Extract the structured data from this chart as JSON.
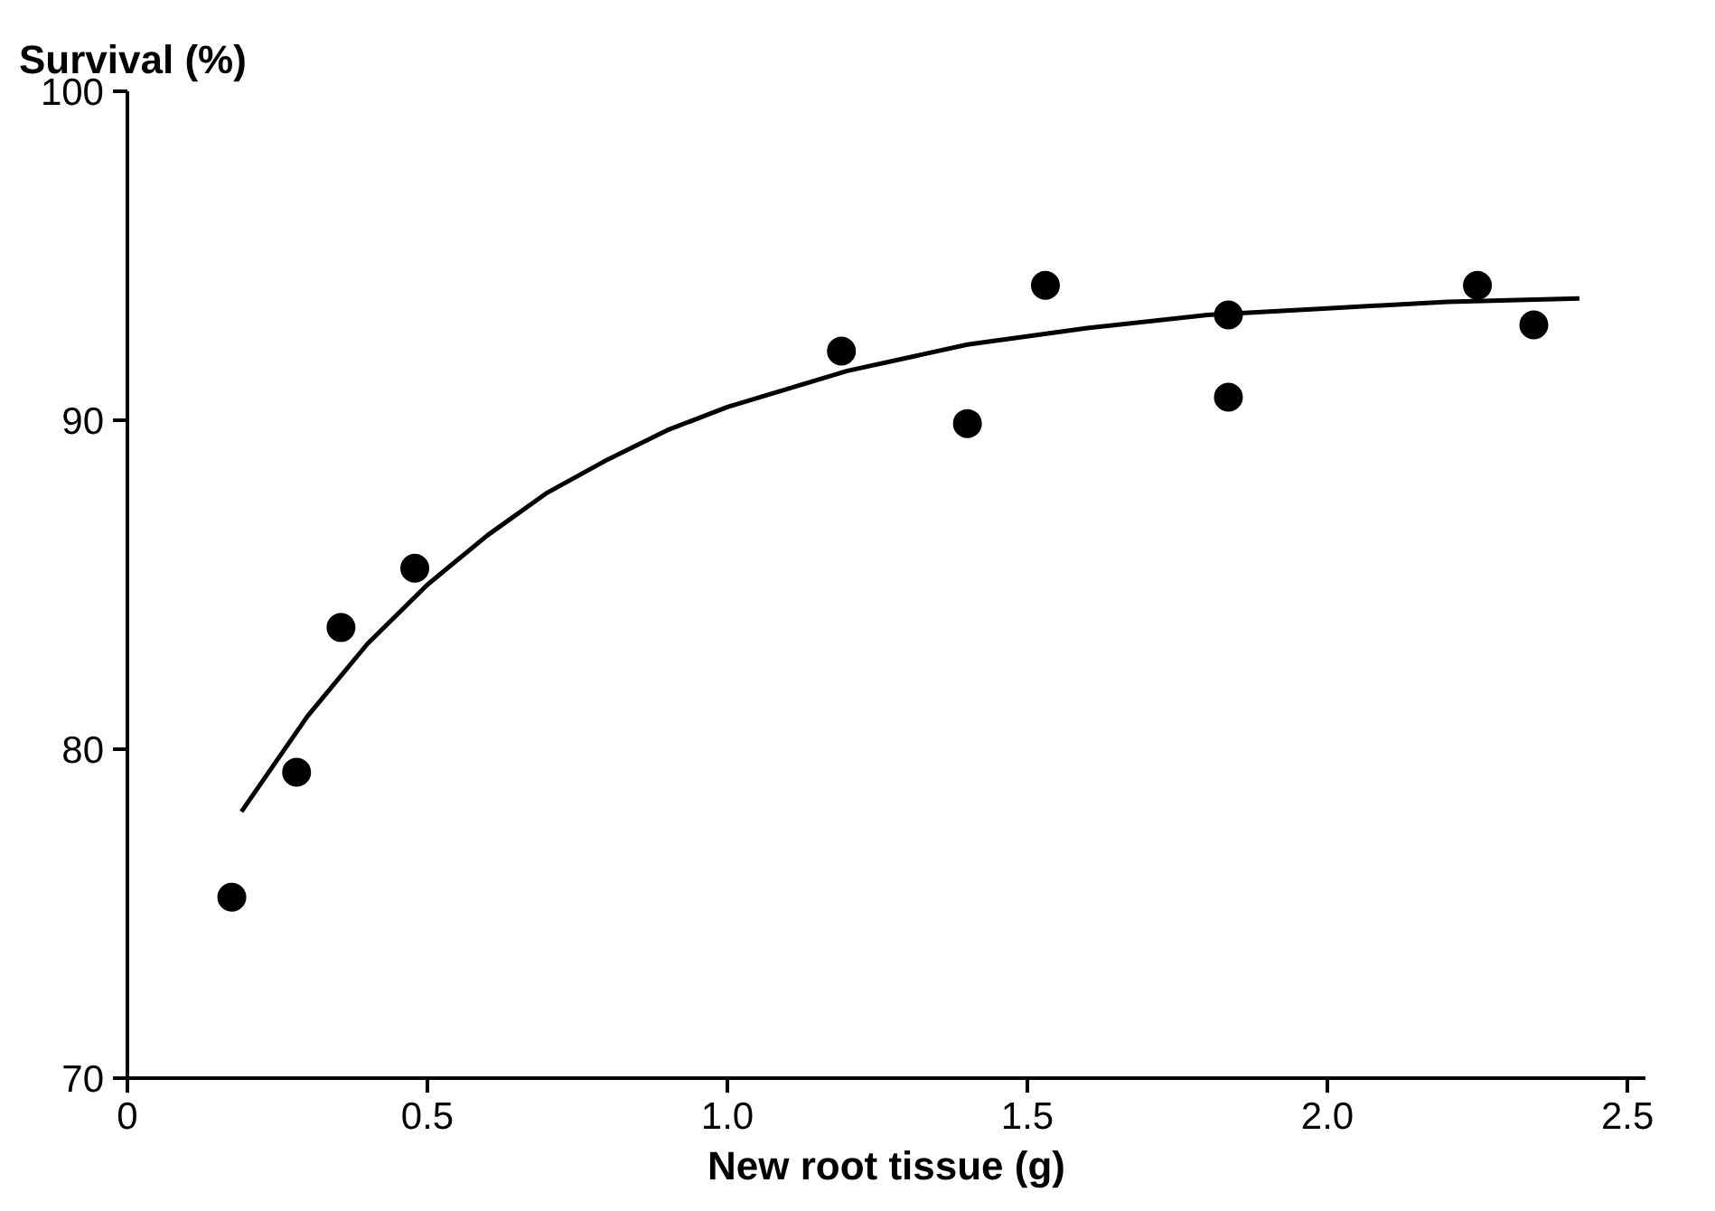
{
  "chart_data": {
    "type": "scatter",
    "ylabel": "Survival (%)",
    "xlabel": "New root tissue (g)",
    "xlim": [
      0,
      2.53
    ],
    "ylim": [
      70,
      100
    ],
    "xticks": [
      0,
      0.5,
      {
        "value": 1,
        "label": "1.0"
      },
      1.5,
      {
        "value": 2,
        "label": "2.0"
      },
      2.5
    ],
    "yticks": [
      70,
      80,
      90,
      100
    ],
    "grid": false,
    "series": [
      {
        "marker": "circle",
        "color": "#000000",
        "x": [
          0.174,
          0.282,
          0.356,
          0.479,
          1.19,
          1.4,
          1.53,
          1.835,
          1.835,
          2.25,
          2.344
        ],
        "values": [
          75.5,
          79.3,
          83.7,
          85.5,
          92.1,
          89.9,
          94.1,
          93.2,
          90.7,
          94.1,
          92.9
        ]
      },
      {
        "type": "line",
        "color": "#000000",
        "line_style": "solid",
        "x": [
          0.19,
          0.3,
          0.4,
          0.5,
          0.6,
          0.7,
          0.8,
          0.9,
          1.0,
          1.2,
          1.4,
          1.6,
          1.8,
          2.0,
          2.2,
          2.42
        ],
        "values": [
          78.1,
          81.0,
          83.2,
          85.0,
          86.5,
          87.8,
          88.8,
          89.7,
          90.4,
          91.5,
          92.3,
          92.8,
          93.2,
          93.4,
          93.6,
          93.7
        ]
      }
    ]
  }
}
